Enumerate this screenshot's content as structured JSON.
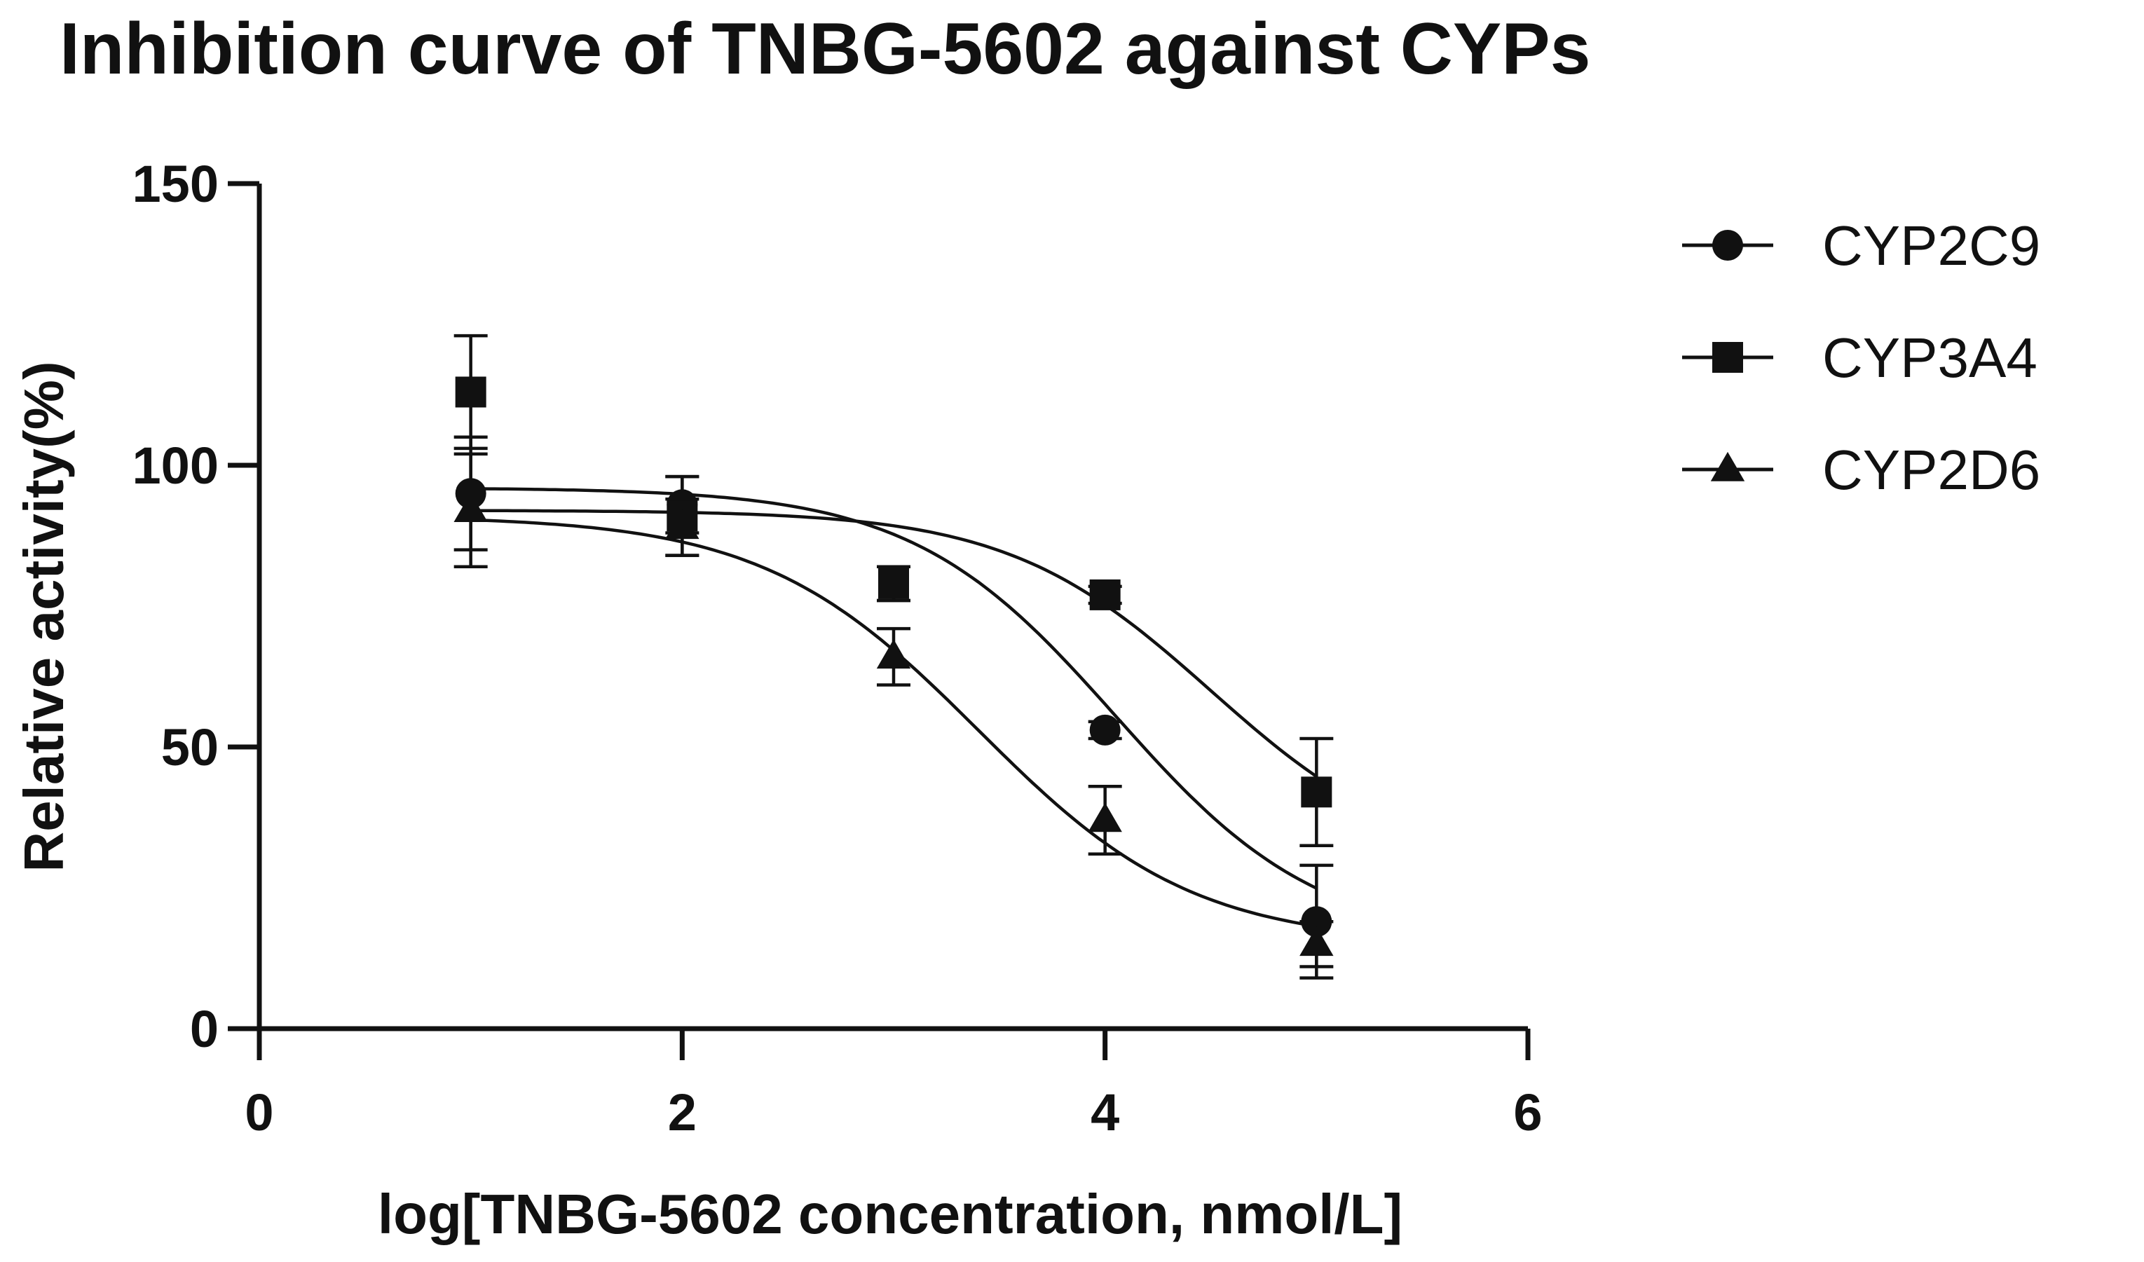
{
  "chart_data": {
    "type": "scatter",
    "title": "Inhibition curve of TNBG-5602 against CYPs",
    "xlabel": "log[TNBG-5602 concentration, nmol/L]",
    "ylabel": "Relative activity(%)",
    "xlim": [
      0,
      6
    ],
    "ylim": [
      0,
      150
    ],
    "xticks": [
      0,
      2,
      4,
      6
    ],
    "yticks": [
      0,
      50,
      100,
      150
    ],
    "xtick_labels": [
      "0",
      "2",
      "4",
      "6"
    ],
    "ytick_labels": [
      "0",
      "50",
      "100",
      "150"
    ],
    "legend_position": "top-right",
    "x": [
      1,
      2,
      3,
      4,
      5
    ],
    "series": [
      {
        "name": "CYP2C9",
        "marker": "circle",
        "values": [
          95,
          93,
          79,
          53,
          19
        ],
        "error": [
          10,
          5,
          3,
          1.5,
          10
        ],
        "fit": {
          "top": 96,
          "bottom": 15,
          "logIC50": 4.05,
          "hill": 0.9
        }
      },
      {
        "name": "CYP3A4",
        "marker": "square",
        "values": [
          113,
          91,
          79,
          77,
          42
        ],
        "error": [
          10,
          7,
          3,
          1.5,
          9.5
        ],
        "fit": {
          "top": 92,
          "bottom": 28,
          "logIC50": 4.5,
          "hill": 0.9
        }
      },
      {
        "name": "CYP2D6",
        "marker": "triangle",
        "values": [
          92,
          89,
          66,
          37,
          15
        ],
        "error": [
          10,
          5,
          5,
          6,
          4
        ],
        "fit": {
          "top": 91,
          "bottom": 15,
          "logIC50": 3.4,
          "hill": 0.85
        }
      }
    ]
  }
}
